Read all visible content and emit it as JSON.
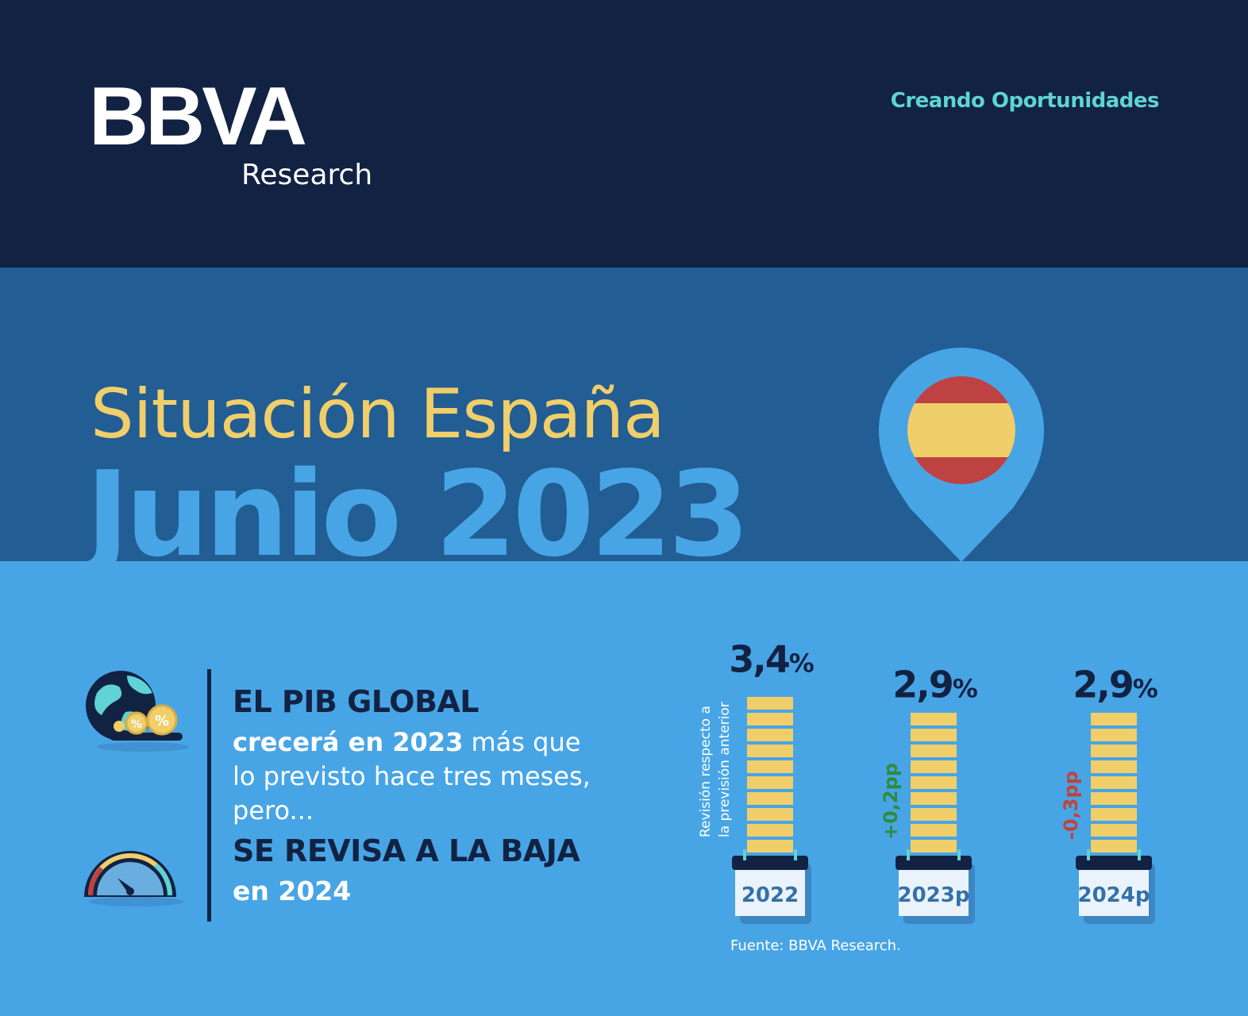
{
  "header": {
    "brand": "BBVA",
    "subbrand": "Research",
    "slogan": "Creando Oportunidades"
  },
  "title": {
    "line1": "Situación España",
    "line2": "Junio 2023"
  },
  "summary": {
    "line1": "EL PIB GLOBAL",
    "line2_bold": "crecerá en 2023",
    "line2_rest": " más que lo previsto hace tres meses, pero...",
    "line3": "SE REVISA A LA BAJA",
    "line4": "en 2024"
  },
  "colors": {
    "navy": "#122243",
    "mid_blue": "#225D94",
    "light_blue": "#48A5E5",
    "gold": "#F0CE6A",
    "teal": "#5FD3D6",
    "positive": "#2E8B3E",
    "negative": "#C0423F"
  },
  "icons": [
    "globe-coins-icon",
    "gauge-icon",
    "spain-location-pin-icon"
  ],
  "chart_data": {
    "type": "bar",
    "categories": [
      "2022",
      "2023p",
      "2024p"
    ],
    "values": [
      3.4,
      2.9,
      2.9
    ],
    "value_labels": [
      "3,4",
      "2,9",
      "2,9"
    ],
    "unit": "%",
    "revisions": [
      null,
      "+0,2pp",
      "-0,3pp"
    ],
    "revision_axis_label_line1": "Revisión respecto a",
    "revision_axis_label_line2": "la previsión anterior",
    "source": "Fuente: BBVA Research."
  }
}
